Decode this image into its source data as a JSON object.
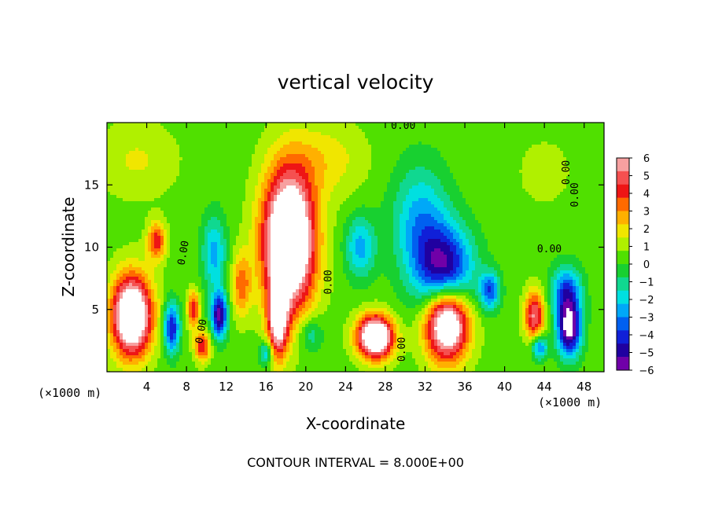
{
  "chart_data": {
    "type": "heatmap",
    "title": "vertical velocity",
    "xlabel": "X-coordinate",
    "ylabel": "Z-coordinate",
    "x_unit": "(×1000 m)",
    "y_unit": "(×1000 m)",
    "x_ticks": [
      4,
      8,
      12,
      16,
      20,
      24,
      28,
      32,
      36,
      40,
      44,
      48
    ],
    "y_ticks": [
      5,
      10,
      15
    ],
    "xlim": [
      0,
      50
    ],
    "ylim": [
      0,
      20
    ],
    "colorbar": {
      "ticks": [
        "6",
        "5",
        "4",
        "3",
        "2",
        "1",
        "0",
        "−1",
        "−2",
        "−3",
        "−4",
        "−5",
        "−6"
      ],
      "range": [
        -6,
        6
      ],
      "colors": [
        "#f7a0a0",
        "#f55050",
        "#ee1515",
        "#ff6a00",
        "#ffb000",
        "#f0e600",
        "#b0f000",
        "#50e000",
        "#18d030",
        "#10d890",
        "#00e0e0",
        "#00a8f8",
        "#0060f0",
        "#1020d8",
        "#2000a0",
        "#7000a8"
      ]
    },
    "contour_labels": [
      "0.00",
      "0.00",
      "0.00",
      "0.00",
      "0.00",
      "0.00",
      "0.00",
      "0.00"
    ],
    "footer": "CONTOUR INTERVAL = 8.000E+00",
    "features": [
      {
        "x": 2.5,
        "z": 4.5,
        "sx": 2.0,
        "sz": 3.2,
        "w": 9
      },
      {
        "x": 5.0,
        "z": 10.5,
        "sx": 0.9,
        "sz": 1.5,
        "w": 4
      },
      {
        "x": 8.7,
        "z": 5.0,
        "sx": 0.6,
        "sz": 1.5,
        "w": 4
      },
      {
        "x": 6.5,
        "z": 3.5,
        "sx": 0.8,
        "sz": 2.0,
        "w": -5
      },
      {
        "x": 9.6,
        "z": 2.0,
        "sx": 0.8,
        "sz": 1.2,
        "w": 4
      },
      {
        "x": 11.3,
        "z": 4.5,
        "sx": 0.8,
        "sz": 1.8,
        "w": -6
      },
      {
        "x": 10.8,
        "z": 9.5,
        "sx": 1.2,
        "sz": 3.0,
        "w": -3
      },
      {
        "x": 13.5,
        "z": 7.0,
        "sx": 1.0,
        "sz": 2.5,
        "w": 3
      },
      {
        "x": 18.3,
        "z": 10.5,
        "sx": 2.6,
        "sz": 5.5,
        "w": 10
      },
      {
        "x": 17.2,
        "z": 4.0,
        "sx": 1.0,
        "sz": 3.0,
        "w": 6
      },
      {
        "x": 16.0,
        "z": 1.5,
        "sx": 0.7,
        "sz": 1.0,
        "w": -3
      },
      {
        "x": 20.5,
        "z": 3.0,
        "sx": 1.2,
        "sz": 1.5,
        "w": -2
      },
      {
        "x": 25.5,
        "z": 10.0,
        "sx": 1.5,
        "sz": 2.5,
        "w": -3
      },
      {
        "x": 27.0,
        "z": 2.8,
        "sx": 1.8,
        "sz": 1.7,
        "w": 9
      },
      {
        "x": 31.5,
        "z": 12.0,
        "sx": 2.8,
        "sz": 4.5,
        "w": -3
      },
      {
        "x": 34.0,
        "z": 8.0,
        "sx": 2.8,
        "sz": 3.5,
        "w": -6
      },
      {
        "x": 34.2,
        "z": 4.0,
        "sx": 2.2,
        "sz": 3.0,
        "w": 9
      },
      {
        "x": 38.5,
        "z": 6.5,
        "sx": 1.0,
        "sz": 1.5,
        "w": -4
      },
      {
        "x": 43.0,
        "z": 4.5,
        "sx": 1.0,
        "sz": 2.0,
        "w": 5
      },
      {
        "x": 43.5,
        "z": 2.0,
        "sx": 0.8,
        "sz": 1.0,
        "w": -4
      },
      {
        "x": 46.5,
        "z": 3.5,
        "sx": 1.2,
        "sz": 2.2,
        "w": -7
      },
      {
        "x": 46.2,
        "z": 6.5,
        "sx": 1.5,
        "sz": 2.0,
        "w": -4
      },
      {
        "x": 22.0,
        "z": 17.0,
        "sx": 4.0,
        "sz": 3.0,
        "w": 1.5
      },
      {
        "x": 44.0,
        "z": 16.0,
        "sx": 4.0,
        "sz": 4.0,
        "w": 0.5
      },
      {
        "x": 3.0,
        "z": 17.0,
        "sx": 4.0,
        "sz": 3.0,
        "w": 1.2
      }
    ]
  }
}
